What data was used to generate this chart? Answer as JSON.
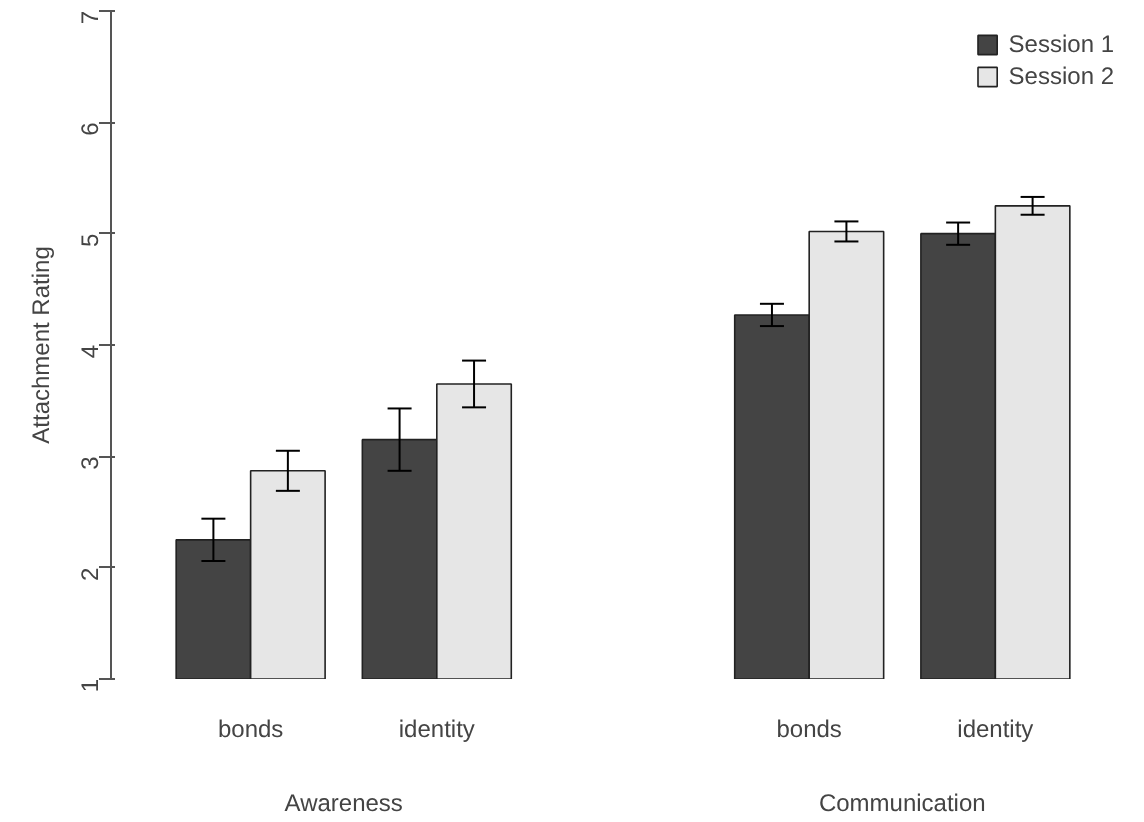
{
  "chart_data": {
    "type": "bar",
    "ylabel": "Attachment Rating",
    "categories": [
      "bonds",
      "identity",
      "bonds",
      "identity"
    ],
    "annotations": [
      "Awareness",
      "Communication"
    ],
    "series": [
      {
        "name": "Session 1",
        "color": "#444444",
        "values": [
          2.25,
          3.15,
          4.27,
          5.0
        ],
        "errors": [
          0.19,
          0.28,
          0.1,
          0.1
        ]
      },
      {
        "name": "Session 2",
        "color": "#e6e6e6",
        "values": [
          2.87,
          3.65,
          5.02,
          5.25
        ],
        "errors": [
          0.18,
          0.21,
          0.09,
          0.08
        ]
      }
    ],
    "ylim": [
      1,
      7
    ],
    "yticks": [
      1,
      2,
      3,
      4,
      5,
      6,
      7
    ],
    "grid": false,
    "legend": "top right"
  }
}
